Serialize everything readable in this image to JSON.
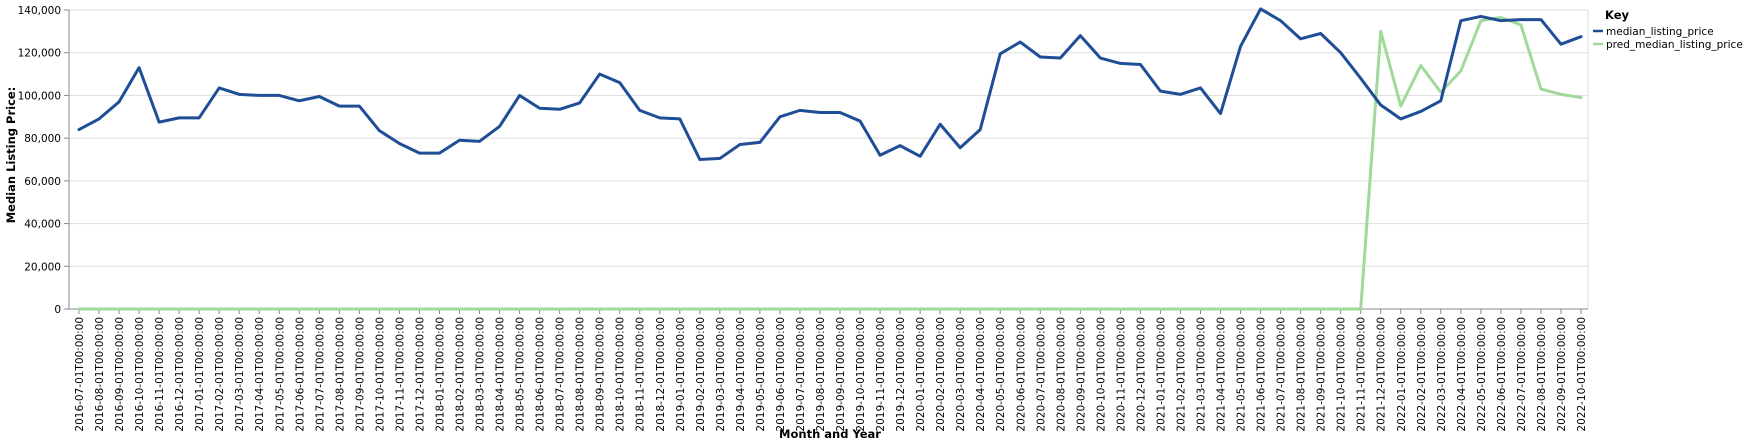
{
  "chart_data": {
    "type": "line",
    "xlabel": "Month and Year",
    "ylabel": "Median Listing Price:",
    "ylim": [
      0,
      140000
    ],
    "yticks": [
      0,
      20000,
      40000,
      60000,
      80000,
      100000,
      120000,
      140000
    ],
    "ytick_labels": [
      "0",
      "20,000",
      "40,000",
      "60,000",
      "80,000",
      "100,000",
      "120,000",
      "140,000"
    ],
    "grid": true,
    "legend": {
      "title": "Key",
      "position": "top-right"
    },
    "categories": [
      "2016-07-01T00:00:00",
      "2016-08-01T00:00:00",
      "2016-09-01T00:00:00",
      "2016-10-01T00:00:00",
      "2016-11-01T00:00:00",
      "2016-12-01T00:00:00",
      "2017-01-01T00:00:00",
      "2017-02-01T00:00:00",
      "2017-03-01T00:00:00",
      "2017-04-01T00:00:00",
      "2017-05-01T00:00:00",
      "2017-06-01T00:00:00",
      "2017-07-01T00:00:00",
      "2017-08-01T00:00:00",
      "2017-09-01T00:00:00",
      "2017-10-01T00:00:00",
      "2017-11-01T00:00:00",
      "2017-12-01T00:00:00",
      "2018-01-01T00:00:00",
      "2018-02-01T00:00:00",
      "2018-03-01T00:00:00",
      "2018-04-01T00:00:00",
      "2018-05-01T00:00:00",
      "2018-06-01T00:00:00",
      "2018-07-01T00:00:00",
      "2018-08-01T00:00:00",
      "2018-09-01T00:00:00",
      "2018-10-01T00:00:00",
      "2018-11-01T00:00:00",
      "2018-12-01T00:00:00",
      "2019-01-01T00:00:00",
      "2019-02-01T00:00:00",
      "2019-03-01T00:00:00",
      "2019-04-01T00:00:00",
      "2019-05-01T00:00:00",
      "2019-06-01T00:00:00",
      "2019-07-01T00:00:00",
      "2019-08-01T00:00:00",
      "2019-09-01T00:00:00",
      "2019-10-01T00:00:00",
      "2019-11-01T00:00:00",
      "2019-12-01T00:00:00",
      "2020-01-01T00:00:00",
      "2020-02-01T00:00:00",
      "2020-03-01T00:00:00",
      "2020-04-01T00:00:00",
      "2020-05-01T00:00:00",
      "2020-06-01T00:00:00",
      "2020-07-01T00:00:00",
      "2020-08-01T00:00:00",
      "2020-09-01T00:00:00",
      "2020-10-01T00:00:00",
      "2020-11-01T00:00:00",
      "2020-12-01T00:00:00",
      "2021-01-01T00:00:00",
      "2021-02-01T00:00:00",
      "2021-03-01T00:00:00",
      "2021-04-01T00:00:00",
      "2021-05-01T00:00:00",
      "2021-06-01T00:00:00",
      "2021-07-01T00:00:00",
      "2021-08-01T00:00:00",
      "2021-09-01T00:00:00",
      "2021-10-01T00:00:00",
      "2021-11-01T00:00:00",
      "2021-12-01T00:00:00",
      "2022-01-01T00:00:00",
      "2022-02-01T00:00:00",
      "2022-03-01T00:00:00",
      "2022-04-01T00:00:00",
      "2022-05-01T00:00:00",
      "2022-06-01T00:00:00",
      "2022-07-01T00:00:00",
      "2022-08-01T00:00:00",
      "2022-09-01T00:00:00",
      "2022-10-01T00:00:00"
    ],
    "series": [
      {
        "name": "median_listing_price",
        "color": "#1f4e96",
        "values": [
          84000,
          89000,
          97000,
          113000,
          87500,
          89500,
          89500,
          103500,
          100500,
          100000,
          100000,
          97500,
          99500,
          95000,
          95000,
          83500,
          77500,
          73000,
          73000,
          79000,
          78500,
          85500,
          100000,
          94000,
          93500,
          96500,
          110000,
          106000,
          93000,
          89500,
          89000,
          70000,
          70500,
          77000,
          78000,
          90000,
          93000,
          92000,
          92000,
          88000,
          72000,
          76500,
          71500,
          86500,
          75500,
          84000,
          119500,
          125000,
          118000,
          117500,
          128000,
          117500,
          115000,
          114500,
          102000,
          100500,
          103500,
          91500,
          123000,
          140500,
          135000,
          126500,
          129000,
          120000,
          108000,
          95500,
          89000,
          92500,
          97500,
          135000,
          137000,
          135000,
          135500,
          135500,
          124000,
          127500
        ]
      },
      {
        "name": "pred_median_listing_price",
        "color": "#a1d99b",
        "values": [
          0,
          0,
          0,
          0,
          0,
          0,
          0,
          0,
          0,
          0,
          0,
          0,
          0,
          0,
          0,
          0,
          0,
          0,
          0,
          0,
          0,
          0,
          0,
          0,
          0,
          0,
          0,
          0,
          0,
          0,
          0,
          0,
          0,
          0,
          0,
          0,
          0,
          0,
          0,
          0,
          0,
          0,
          0,
          0,
          0,
          0,
          0,
          0,
          0,
          0,
          0,
          0,
          0,
          0,
          0,
          0,
          0,
          0,
          0,
          0,
          0,
          0,
          0,
          0,
          0,
          130000,
          95000,
          114000,
          101500,
          111500,
          135000,
          136500,
          133000,
          103000,
          100500,
          99000
        ]
      }
    ]
  }
}
